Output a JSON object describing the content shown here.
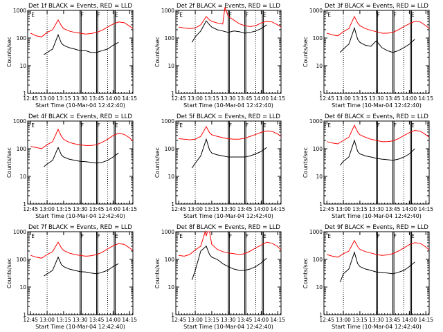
{
  "chart_data": [
    {
      "type": "line",
      "title": "Det 1f BLACK = Events, RED = LLD",
      "ylabel": "Counts/sec",
      "xlabel": "Start Time (10-Mar-04 12:42:40)",
      "x_ticks": [
        "12:45",
        "13:00",
        "13:15",
        "13:30",
        "13:45",
        "14:00",
        "14:15"
      ],
      "y_ticks": [
        "1",
        "10",
        "100",
        "1000"
      ],
      "yscale": "log",
      "ylim": [
        1,
        1000
      ],
      "xlim_min": [
        -2.67,
        93
      ],
      "series": [
        {
          "color": "#ff0000",
          "x": [
            0,
            5,
            10,
            15,
            20,
            25,
            28,
            30,
            35,
            40,
            45,
            50,
            55,
            60,
            65,
            70,
            75,
            80,
            85,
            90,
            93
          ],
          "y": [
            150,
            120,
            110,
            160,
            200,
            450,
            280,
            220,
            180,
            160,
            150,
            140,
            145,
            160,
            190,
            250,
            320,
            380,
            360,
            270,
            220
          ]
        },
        {
          "color": "#000000",
          "x": [
            12,
            15,
            20,
            25,
            28,
            30,
            35,
            40,
            45,
            50,
            55,
            60,
            65,
            70,
            75,
            80
          ],
          "y": [
            25,
            30,
            40,
            130,
            65,
            55,
            45,
            40,
            35,
            35,
            30,
            30,
            35,
            40,
            55,
            70
          ]
        }
      ]
    },
    {
      "type": "line",
      "title": "Det 2f BLACK = Events, RED = LLD",
      "ylabel": "Counts/sec",
      "xlabel": "Start Time (10-Mar-04 12:42:40)",
      "x_ticks": [
        "12:45",
        "13:00",
        "13:15",
        "13:30",
        "13:45",
        "14:00",
        "14:15"
      ],
      "y_ticks": [
        "1",
        "10",
        "100",
        "1000"
      ],
      "yscale": "log",
      "ylim": [
        1,
        1000
      ],
      "xlim_min": [
        -2.67,
        93
      ],
      "series": [
        {
          "color": "#ff0000",
          "x": [
            0,
            5,
            10,
            15,
            20,
            25,
            28,
            30,
            35,
            40,
            42,
            45,
            50,
            55,
            60,
            65,
            70,
            75,
            80,
            85,
            90,
            93
          ],
          "y": [
            250,
            230,
            220,
            230,
            300,
            600,
            450,
            400,
            350,
            320,
            1300,
            600,
            450,
            330,
            280,
            260,
            280,
            350,
            400,
            380,
            300,
            250
          ]
        },
        {
          "color": "#000000",
          "x": [
            12,
            15,
            20,
            25,
            28,
            30,
            35,
            40,
            45,
            50,
            55,
            60,
            65,
            70,
            75,
            80
          ],
          "y": [
            70,
            110,
            180,
            420,
            300,
            250,
            200,
            180,
            160,
            180,
            170,
            150,
            160,
            180,
            220,
            300
          ]
        }
      ]
    },
    {
      "type": "line",
      "title": "Det 3f BLACK = Events, RED = LLD",
      "ylabel": "Counts/sec",
      "xlabel": "Start Time (10-Mar-04 12:42:40)",
      "x_ticks": [
        "12:45",
        "13:00",
        "13:15",
        "13:30",
        "13:45",
        "14:00",
        "14:15"
      ],
      "y_ticks": [
        "1",
        "10",
        "100",
        "1000"
      ],
      "yscale": "log",
      "ylim": [
        1,
        1000
      ],
      "xlim_min": [
        -2.67,
        93
      ],
      "series": [
        {
          "color": "#ff0000",
          "x": [
            0,
            5,
            10,
            15,
            20,
            25,
            28,
            30,
            35,
            40,
            45,
            50,
            55,
            60,
            65,
            70,
            75,
            80,
            85,
            90,
            93
          ],
          "y": [
            150,
            130,
            120,
            170,
            220,
            600,
            350,
            280,
            220,
            190,
            170,
            150,
            150,
            160,
            200,
            260,
            330,
            400,
            380,
            280,
            220
          ]
        },
        {
          "color": "#000000",
          "x": [
            12,
            15,
            20,
            25,
            28,
            30,
            35,
            40,
            45,
            50,
            55,
            60,
            65,
            70,
            75,
            80
          ],
          "y": [
            30,
            40,
            60,
            230,
            90,
            70,
            55,
            50,
            80,
            45,
            35,
            30,
            35,
            45,
            60,
            90
          ]
        }
      ]
    },
    {
      "type": "line",
      "title": "Det 4f BLACK = Events, RED = LLD",
      "ylabel": "Counts/sec",
      "xlabel": "Start Time (10-Mar-04 12:42:40)",
      "x_ticks": [
        "12:45",
        "13:00",
        "13:15",
        "13:30",
        "13:45",
        "14:00",
        "14:15"
      ],
      "y_ticks": [
        "1",
        "10",
        "100",
        "1000"
      ],
      "yscale": "log",
      "ylim": [
        1,
        1000
      ],
      "xlim_min": [
        -2.67,
        93
      ],
      "series": [
        {
          "color": "#ff0000",
          "x": [
            0,
            5,
            10,
            15,
            20,
            25,
            28,
            30,
            35,
            40,
            45,
            50,
            55,
            60,
            65,
            70,
            75,
            80,
            85,
            90,
            93
          ],
          "y": [
            120,
            110,
            100,
            140,
            180,
            500,
            280,
            220,
            170,
            150,
            140,
            130,
            130,
            140,
            170,
            220,
            300,
            360,
            330,
            250,
            190
          ]
        },
        {
          "color": "#000000",
          "x": [
            12,
            15,
            20,
            25,
            28,
            30,
            35,
            40,
            45,
            50,
            55,
            60,
            65,
            70,
            75,
            80
          ],
          "y": [
            22,
            28,
            38,
            110,
            60,
            50,
            42,
            38,
            35,
            34,
            32,
            30,
            32,
            38,
            50,
            70
          ]
        }
      ]
    },
    {
      "type": "line",
      "title": "Det 5f BLACK = Events, RED = LLD",
      "ylabel": "Counts/sec",
      "xlabel": "Start Time (10-Mar-04 12:42:40)",
      "x_ticks": [
        "12:45",
        "13:00",
        "13:15",
        "13:30",
        "13:45",
        "14:00",
        "14:15"
      ],
      "y_ticks": [
        "1",
        "10",
        "100",
        "1000"
      ],
      "yscale": "log",
      "ylim": [
        1,
        1000
      ],
      "xlim_min": [
        -2.67,
        93
      ],
      "series": [
        {
          "color": "#ff0000",
          "x": [
            0,
            5,
            10,
            15,
            20,
            25,
            28,
            30,
            35,
            40,
            45,
            50,
            55,
            60,
            65,
            70,
            75,
            80,
            85,
            90,
            93
          ],
          "y": [
            230,
            220,
            210,
            220,
            280,
            620,
            380,
            320,
            280,
            250,
            230,
            220,
            220,
            240,
            280,
            330,
            390,
            440,
            420,
            340,
            280
          ]
        },
        {
          "color": "#000000",
          "x": [
            12,
            15,
            20,
            25,
            28,
            30,
            35,
            40,
            45,
            50,
            55,
            60,
            65,
            70,
            75,
            80
          ],
          "y": [
            20,
            30,
            55,
            220,
            90,
            70,
            60,
            55,
            50,
            50,
            50,
            50,
            55,
            65,
            80,
            110
          ]
        }
      ]
    },
    {
      "type": "line",
      "title": "Det 6f BLACK = Events, RED = LLD",
      "ylabel": "Counts/sec",
      "xlabel": "Start Time (10-Mar-04 12:42:40)",
      "x_ticks": [
        "12:45",
        "13:00",
        "13:15",
        "13:30",
        "13:45",
        "14:00",
        "14:15"
      ],
      "y_ticks": [
        "1",
        "10",
        "100",
        "1000"
      ],
      "yscale": "log",
      "ylim": [
        1,
        1000
      ],
      "xlim_min": [
        -2.67,
        93
      ],
      "series": [
        {
          "color": "#ff0000",
          "x": [
            0,
            5,
            10,
            15,
            20,
            25,
            28,
            30,
            35,
            40,
            45,
            50,
            55,
            60,
            65,
            70,
            75,
            80,
            85,
            90,
            93
          ],
          "y": [
            180,
            160,
            150,
            200,
            260,
            700,
            400,
            320,
            260,
            220,
            200,
            180,
            180,
            190,
            230,
            300,
            380,
            460,
            430,
            320,
            260
          ]
        },
        {
          "color": "#000000",
          "x": [
            12,
            15,
            20,
            25,
            28,
            30,
            35,
            40,
            45,
            50,
            55,
            60,
            65,
            70,
            75,
            80
          ],
          "y": [
            25,
            35,
            50,
            200,
            80,
            65,
            55,
            50,
            45,
            42,
            40,
            38,
            42,
            50,
            65,
            100
          ]
        }
      ]
    },
    {
      "type": "line",
      "title": "Det 7f BLACK = Events, RED = LLD",
      "ylabel": "Counts/sec",
      "xlabel": "Start Time (10-Mar-04 12:42:40)",
      "x_ticks": [
        "12:45",
        "13:00",
        "13:15",
        "13:30",
        "13:45",
        "14:00",
        "14:15"
      ],
      "y_ticks": [
        "1",
        "10",
        "100",
        "1000"
      ],
      "yscale": "log",
      "ylim": [
        1,
        1000
      ],
      "xlim_min": [
        -2.67,
        93
      ],
      "series": [
        {
          "color": "#ff0000",
          "x": [
            0,
            5,
            10,
            15,
            20,
            25,
            28,
            30,
            35,
            40,
            45,
            50,
            55,
            60,
            65,
            70,
            75,
            80,
            85,
            90,
            93
          ],
          "y": [
            140,
            120,
            110,
            150,
            190,
            420,
            260,
            210,
            170,
            150,
            140,
            130,
            135,
            150,
            180,
            240,
            310,
            370,
            350,
            260,
            210
          ]
        },
        {
          "color": "#000000",
          "x": [
            12,
            15,
            20,
            25,
            28,
            30,
            35,
            40,
            45,
            50,
            55,
            60,
            65,
            70,
            75,
            80
          ],
          "y": [
            25,
            30,
            40,
            120,
            65,
            55,
            45,
            40,
            36,
            35,
            32,
            30,
            34,
            40,
            55,
            70
          ]
        }
      ]
    },
    {
      "type": "line",
      "title": "Det 8f BLACK = Events, RED = LLD",
      "ylabel": "Counts/sec",
      "xlabel": "Start Time (10-Mar-04 12:42:40)",
      "x_ticks": [
        "12:45",
        "13:00",
        "13:15",
        "13:30",
        "13:45",
        "14:00",
        "14:15"
      ],
      "y_ticks": [
        "1",
        "10",
        "100",
        "1000"
      ],
      "yscale": "log",
      "ylim": [
        1,
        1000
      ],
      "xlim_min": [
        -2.67,
        93
      ],
      "series": [
        {
          "color": "#ff0000",
          "x": [
            0,
            5,
            10,
            15,
            20,
            24,
            25,
            26,
            28,
            30,
            35,
            40,
            45,
            50,
            55,
            60,
            65,
            70,
            75,
            80,
            85,
            90,
            93
          ],
          "y": [
            140,
            130,
            150,
            220,
            300,
            1000,
            700,
            1000,
            1000,
            350,
            230,
            190,
            170,
            160,
            150,
            160,
            200,
            260,
            330,
            420,
            380,
            290,
            220
          ]
        },
        {
          "color": "#000000",
          "x": [
            12,
            15,
            20,
            25,
            28,
            30,
            35,
            40,
            45,
            50,
            55,
            60,
            65,
            70,
            75,
            80
          ],
          "y": [
            18,
            40,
            200,
            300,
            150,
            120,
            100,
            70,
            55,
            45,
            40,
            40,
            45,
            55,
            75,
            110
          ]
        }
      ]
    },
    {
      "type": "line",
      "title": "Det 9f BLACK = Events, RED = LLD",
      "ylabel": "Counts/sec",
      "xlabel": "Start Time (10-Mar-04 12:42:40)",
      "x_ticks": [
        "12:45",
        "13:00",
        "13:15",
        "13:30",
        "13:45",
        "14:00",
        "14:15"
      ],
      "y_ticks": [
        "1",
        "10",
        "100",
        "1000"
      ],
      "yscale": "log",
      "ylim": [
        1,
        1000
      ],
      "xlim_min": [
        -2.67,
        93
      ],
      "series": [
        {
          "color": "#ff0000",
          "x": [
            0,
            5,
            10,
            15,
            20,
            25,
            28,
            30,
            35,
            40,
            45,
            50,
            55,
            60,
            65,
            70,
            75,
            80,
            85,
            90,
            93
          ],
          "y": [
            150,
            130,
            120,
            160,
            200,
            480,
            290,
            230,
            190,
            170,
            150,
            140,
            145,
            160,
            200,
            260,
            340,
            400,
            380,
            280,
            220
          ]
        },
        {
          "color": "#000000",
          "x": [
            12,
            15,
            20,
            25,
            28,
            30,
            35,
            40,
            45,
            50,
            55,
            60,
            65,
            70,
            75,
            80
          ],
          "y": [
            15,
            30,
            45,
            180,
            70,
            55,
            45,
            40,
            35,
            34,
            32,
            30,
            34,
            40,
            55,
            80
          ]
        }
      ]
    }
  ],
  "markers": {
    "dotted_x": [
      15,
      70
    ],
    "solid_x": [
      45,
      46,
      60,
      61,
      76,
      77
    ],
    "letters": [
      {
        "t": "E",
        "x": 0
      },
      {
        "t": "F",
        "x": 45
      },
      {
        "t": "F",
        "x": 60
      },
      {
        "t": "E",
        "x": 76
      }
    ]
  }
}
